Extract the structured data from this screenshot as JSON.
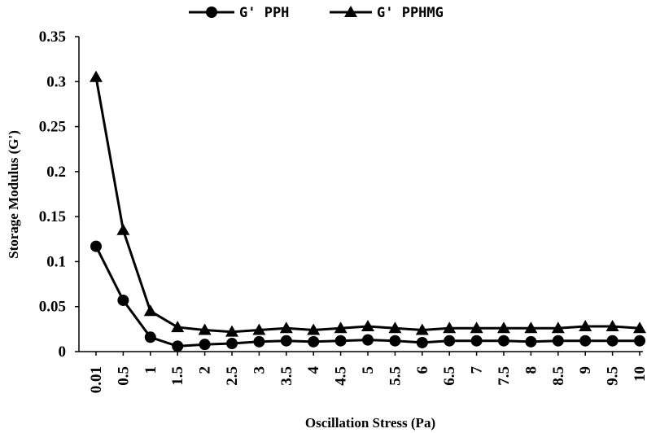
{
  "chart_data": {
    "type": "line",
    "title": "",
    "xlabel": "Oscillation Stress (Pa)",
    "ylabel": "Storage Modulus (G')",
    "categories": [
      "0.01",
      "0.5",
      "1",
      "1.5",
      "2",
      "2.5",
      "3",
      "3.5",
      "4",
      "4.5",
      "5",
      "5.5",
      "6",
      "6.5",
      "7",
      "7.5",
      "8",
      "8.5",
      "9",
      "9.5",
      "10"
    ],
    "ylim": [
      0,
      0.35
    ],
    "yticks": [
      "0",
      "0.05",
      "0.1",
      "0.15",
      "0.2",
      "0.25",
      "0.3",
      "0.35"
    ],
    "grid": false,
    "legend": "top-center",
    "series": [
      {
        "name": "G' PPH",
        "marker": "circle",
        "color": "#000000",
        "values": [
          0.117,
          0.057,
          0.016,
          0.006,
          0.008,
          0.009,
          0.011,
          0.012,
          0.011,
          0.012,
          0.013,
          0.012,
          0.01,
          0.012,
          0.012,
          0.012,
          0.011,
          0.012,
          0.012,
          0.012,
          0.012
        ]
      },
      {
        "name": "G' PPHMG",
        "marker": "triangle",
        "color": "#000000",
        "values": [
          0.305,
          0.135,
          0.045,
          0.027,
          0.024,
          0.022,
          0.024,
          0.026,
          0.024,
          0.026,
          0.028,
          0.026,
          0.024,
          0.026,
          0.026,
          0.026,
          0.026,
          0.026,
          0.028,
          0.028,
          0.026
        ]
      }
    ]
  }
}
